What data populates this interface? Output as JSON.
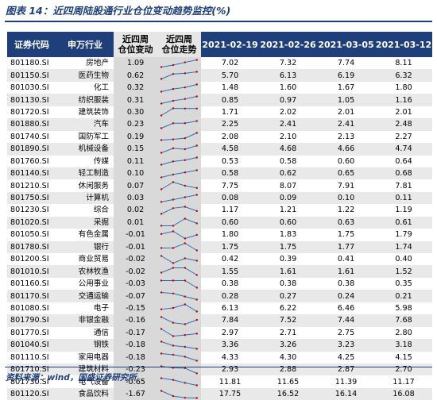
{
  "title": "图表 14：近四周陆股通行业仓位变动趋势监控(%)",
  "source": "资料来源：wind，国盛证券研究所",
  "colors": {
    "header_bg": "#1f3f7a",
    "spark_line": "#2e6fb8",
    "spark_point": "#c00000"
  },
  "headers": [
    "证券代码",
    "申万行业",
    "近四周\n仓位变动",
    "近四周\n仓位走势",
    "2021-02-19",
    "2021-02-26",
    "2021-03-05",
    "2021-03-12"
  ],
  "rows": [
    {
      "code": "801180.SI",
      "industry": "房地产",
      "change": "1.09",
      "values": [
        "7.02",
        "7.32",
        "7.74",
        "8.11"
      ]
    },
    {
      "code": "801150.SI",
      "industry": "医药生物",
      "change": "0.62",
      "values": [
        "5.70",
        "6.13",
        "6.19",
        "6.32"
      ]
    },
    {
      "code": "801030.SI",
      "industry": "化工",
      "change": "0.32",
      "values": [
        "1.48",
        "1.60",
        "1.67",
        "1.80"
      ]
    },
    {
      "code": "801130.SI",
      "industry": "纺织服装",
      "change": "0.31",
      "values": [
        "0.85",
        "0.97",
        "1.05",
        "1.16"
      ]
    },
    {
      "code": "801720.SI",
      "industry": "建筑装饰",
      "change": "0.30",
      "values": [
        "1.71",
        "2.02",
        "2.01",
        "2.01"
      ]
    },
    {
      "code": "801880.SI",
      "industry": "汽车",
      "change": "0.23",
      "values": [
        "2.25",
        "2.41",
        "2.41",
        "2.48"
      ]
    },
    {
      "code": "801740.SI",
      "industry": "国防军工",
      "change": "0.19",
      "values": [
        "2.08",
        "2.10",
        "2.13",
        "2.27"
      ]
    },
    {
      "code": "801890.SI",
      "industry": "机械设备",
      "change": "0.15",
      "values": [
        "4.58",
        "4.68",
        "4.66",
        "4.74"
      ]
    },
    {
      "code": "801760.SI",
      "industry": "传媒",
      "change": "0.11",
      "values": [
        "0.53",
        "0.58",
        "0.60",
        "0.64"
      ]
    },
    {
      "code": "801140.SI",
      "industry": "轻工制造",
      "change": "0.10",
      "values": [
        "0.58",
        "0.62",
        "0.65",
        "0.68"
      ]
    },
    {
      "code": "801210.SI",
      "industry": "休闲服务",
      "change": "0.07",
      "values": [
        "7.75",
        "8.07",
        "7.91",
        "7.81"
      ]
    },
    {
      "code": "801750.SI",
      "industry": "计算机",
      "change": "0.03",
      "values": [
        "0.08",
        "0.09",
        "0.10",
        "0.11"
      ]
    },
    {
      "code": "801230.SI",
      "industry": "综合",
      "change": "0.02",
      "values": [
        "1.17",
        "1.21",
        "1.22",
        "1.19"
      ]
    },
    {
      "code": "801020.SI",
      "industry": "采掘",
      "change": "0.01",
      "values": [
        "0.60",
        "0.60",
        "0.63",
        "0.61"
      ]
    },
    {
      "code": "801050.SI",
      "industry": "有色金属",
      "change": "-0.01",
      "values": [
        "1.80",
        "1.83",
        "1.75",
        "1.79"
      ]
    },
    {
      "code": "801780.SI",
      "industry": "银行",
      "change": "-0.01",
      "values": [
        "1.75",
        "1.75",
        "1.77",
        "1.74"
      ]
    },
    {
      "code": "801200.SI",
      "industry": "商业贸易",
      "change": "-0.02",
      "values": [
        "0.42",
        "0.39",
        "0.41",
        "0.40"
      ]
    },
    {
      "code": "801010.SI",
      "industry": "农林牧渔",
      "change": "-0.02",
      "values": [
        "1.55",
        "1.61",
        "1.61",
        "1.52"
      ]
    },
    {
      "code": "801160.SI",
      "industry": "公用事业",
      "change": "-0.03",
      "values": [
        "0.38",
        "0.38",
        "0.38",
        "0.35"
      ]
    },
    {
      "code": "801170.SI",
      "industry": "交通运输",
      "change": "-0.07",
      "values": [
        "0.28",
        "0.27",
        "0.24",
        "0.21"
      ]
    },
    {
      "code": "801080.SI",
      "industry": "电子",
      "change": "-0.15",
      "values": [
        "6.13",
        "6.22",
        "6.46",
        "5.98"
      ]
    },
    {
      "code": "801790.SI",
      "industry": "非银金融",
      "change": "-0.16",
      "values": [
        "7.84",
        "7.52",
        "7.44",
        "7.68"
      ]
    },
    {
      "code": "801770.SI",
      "industry": "通信",
      "change": "-0.17",
      "values": [
        "2.97",
        "2.71",
        "2.75",
        "2.80"
      ]
    },
    {
      "code": "801040.SI",
      "industry": "钢铁",
      "change": "-0.18",
      "values": [
        "3.36",
        "3.26",
        "3.23",
        "3.18"
      ]
    },
    {
      "code": "801110.SI",
      "industry": "家用电器",
      "change": "-0.18",
      "values": [
        "4.33",
        "4.30",
        "4.25",
        "4.15"
      ]
    },
    {
      "code": "801710.SI",
      "industry": "建筑材料",
      "change": "-0.23",
      "values": [
        "2.93",
        "2.88",
        "2.87",
        "2.70"
      ]
    },
    {
      "code": "801730.SI",
      "industry": "电气设备",
      "change": "-0.65",
      "values": [
        "11.81",
        "11.65",
        "11.39",
        "11.17"
      ]
    },
    {
      "code": "801120.SI",
      "industry": "食品饮料",
      "change": "-1.67",
      "values": [
        "17.75",
        "16.52",
        "16.14",
        "16.08"
      ]
    }
  ]
}
